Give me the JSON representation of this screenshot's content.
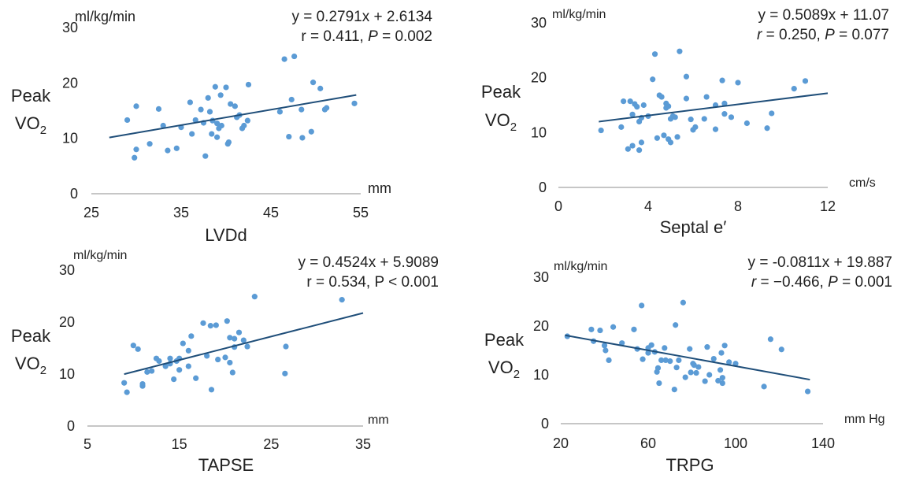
{
  "chart_data": [
    {
      "type": "scatter",
      "ylabel_main": "Peak",
      "ylabel_sub_main": "VO",
      "ylabel_sub_script": "2",
      "yunit": "ml/kg/min",
      "xunit": "mm",
      "xlabel": "LVDd",
      "equation": "y = 0.2791x + 2.6134",
      "stats": [
        {
          "text": "r = 0.411, ",
          "italic": false
        },
        {
          "text": "P",
          "italic": true
        },
        {
          "text": " = 0.002",
          "italic": false
        }
      ],
      "xlim": [
        25,
        55
      ],
      "ylim": [
        0,
        30
      ],
      "xticks": [
        "25",
        "35",
        "45",
        "55"
      ],
      "yticks": [
        "0",
        "10",
        "20",
        "30"
      ],
      "trendline": {
        "slope": 0.2791,
        "intercept": 2.6134,
        "x_range": [
          27,
          54.5
        ]
      },
      "points": [
        [
          29,
          13.3
        ],
        [
          29.8,
          6.5
        ],
        [
          30,
          8
        ],
        [
          30,
          15.8
        ],
        [
          31.5,
          9
        ],
        [
          32.5,
          15.3
        ],
        [
          33,
          12.3
        ],
        [
          33.5,
          7.8
        ],
        [
          34.5,
          8.2
        ],
        [
          35,
          12
        ],
        [
          36,
          16.5
        ],
        [
          36.2,
          10.8
        ],
        [
          36.6,
          13.3
        ],
        [
          37.2,
          15.2
        ],
        [
          37.5,
          12.8
        ],
        [
          37.7,
          6.8
        ],
        [
          38,
          17.3
        ],
        [
          38.2,
          14.8
        ],
        [
          38.4,
          10.8
        ],
        [
          38.5,
          13.2
        ],
        [
          38.8,
          19.3
        ],
        [
          39,
          12.7
        ],
        [
          39,
          10.2
        ],
        [
          39.2,
          11.8
        ],
        [
          39.4,
          17.8
        ],
        [
          39.5,
          12.3
        ],
        [
          40,
          19.2
        ],
        [
          40.2,
          9
        ],
        [
          40.3,
          9.3
        ],
        [
          40.5,
          16.2
        ],
        [
          41,
          15.8
        ],
        [
          41.2,
          13.8
        ],
        [
          41.5,
          14.2
        ],
        [
          41.8,
          11.8
        ],
        [
          42,
          12.3
        ],
        [
          42.4,
          13.2
        ],
        [
          42.5,
          19.7
        ],
        [
          46,
          14.8
        ],
        [
          46.5,
          24.3
        ],
        [
          47,
          10.3
        ],
        [
          47.3,
          17
        ],
        [
          47.6,
          24.8
        ],
        [
          48.4,
          15.2
        ],
        [
          48.5,
          10.1
        ],
        [
          49.5,
          11.2
        ],
        [
          49.7,
          20.1
        ],
        [
          50.5,
          19
        ],
        [
          51,
          15.2
        ],
        [
          51.2,
          15.5
        ],
        [
          54.3,
          16.3
        ]
      ]
    },
    {
      "type": "scatter",
      "ylabel_main": "Peak",
      "ylabel_sub_main": "VO",
      "ylabel_sub_script": "2",
      "yunit": "ml/kg/min",
      "xunit": "cm/s",
      "xlabel": "Septal e′",
      "equation": "y = 0.5089x + 11.07",
      "stats": [
        {
          "text": "r",
          "italic": true
        },
        {
          "text": " = 0.250, ",
          "italic": false
        },
        {
          "text": "P",
          "italic": true
        },
        {
          "text": " = 0.077",
          "italic": false
        }
      ],
      "xlim": [
        0,
        12
      ],
      "ylim": [
        0,
        30
      ],
      "xticks": [
        "0",
        "4",
        "8",
        "12"
      ],
      "yticks": [
        "0",
        "10",
        "20",
        "30"
      ],
      "trendline": {
        "slope": 0.5089,
        "intercept": 11.07,
        "x_range": [
          1.8,
          12
        ]
      },
      "points": [
        [
          1.9,
          10.4
        ],
        [
          2.8,
          11
        ],
        [
          2.9,
          15.7
        ],
        [
          3.1,
          7
        ],
        [
          3.2,
          15.7
        ],
        [
          3.3,
          13.3
        ],
        [
          3.3,
          7.6
        ],
        [
          3.4,
          15.2
        ],
        [
          3.5,
          14.7
        ],
        [
          3.6,
          12
        ],
        [
          3.6,
          6.8
        ],
        [
          3.7,
          12.7
        ],
        [
          3.7,
          8.2
        ],
        [
          3.8,
          15
        ],
        [
          4,
          13
        ],
        [
          4.2,
          19.7
        ],
        [
          4.3,
          24.3
        ],
        [
          4.4,
          9
        ],
        [
          4.5,
          16.8
        ],
        [
          4.6,
          16.5
        ],
        [
          4.7,
          9.5
        ],
        [
          4.8,
          15.3
        ],
        [
          4.8,
          14.5
        ],
        [
          4.9,
          14.8
        ],
        [
          4.9,
          8.8
        ],
        [
          5,
          12.5
        ],
        [
          5,
          8.2
        ],
        [
          5.1,
          13
        ],
        [
          5.2,
          12.8
        ],
        [
          5.4,
          24.8
        ],
        [
          5.3,
          9.2
        ],
        [
          5.7,
          20.2
        ],
        [
          5.7,
          16.2
        ],
        [
          5.9,
          12.4
        ],
        [
          6,
          10.5
        ],
        [
          6.1,
          11
        ],
        [
          6.5,
          12.5
        ],
        [
          6.6,
          16.5
        ],
        [
          7,
          15
        ],
        [
          7,
          10.6
        ],
        [
          7.3,
          19.5
        ],
        [
          7.4,
          13.4
        ],
        [
          7.4,
          15.3
        ],
        [
          7.7,
          12.8
        ],
        [
          8,
          19.1
        ],
        [
          8.4,
          11.7
        ],
        [
          9.3,
          10.8
        ],
        [
          9.5,
          13.5
        ],
        [
          10.5,
          18
        ],
        [
          11,
          19.4
        ]
      ]
    },
    {
      "type": "scatter",
      "ylabel_main": "Peak",
      "ylabel_sub_main": "VO",
      "ylabel_sub_script": "2",
      "yunit": "ml/kg/min",
      "xunit": "mm",
      "xlabel": "TAPSE",
      "equation": "y = 0.4524x + 5.9089",
      "stats": [
        {
          "text": "r = 0.534, P < 0.001",
          "italic": false
        }
      ],
      "xlim": [
        5,
        35
      ],
      "ylim": [
        0,
        30
      ],
      "xticks": [
        "5",
        "15",
        "25",
        "35"
      ],
      "yticks": [
        "0",
        "10",
        "20",
        "30"
      ],
      "trendline": {
        "slope": 0.4524,
        "intercept": 5.9089,
        "x_range": [
          9,
          35
        ]
      },
      "points": [
        [
          9,
          8.3
        ],
        [
          9.3,
          6.5
        ],
        [
          10,
          15.5
        ],
        [
          10.5,
          14.8
        ],
        [
          11,
          8.1
        ],
        [
          11,
          7.7
        ],
        [
          11.5,
          10.4
        ],
        [
          12,
          10.6
        ],
        [
          12.5,
          13
        ],
        [
          12.8,
          12.5
        ],
        [
          13.5,
          11.5
        ],
        [
          14,
          12
        ],
        [
          14,
          13
        ],
        [
          14.4,
          9
        ],
        [
          14.7,
          12.5
        ],
        [
          15,
          10.8
        ],
        [
          15,
          13
        ],
        [
          15.4,
          15.9
        ],
        [
          16,
          11.5
        ],
        [
          16,
          14.5
        ],
        [
          16.3,
          17.3
        ],
        [
          16.8,
          9.2
        ],
        [
          17.6,
          19.8
        ],
        [
          18,
          13.5
        ],
        [
          18.4,
          19.3
        ],
        [
          18.5,
          7
        ],
        [
          19,
          19.4
        ],
        [
          19.2,
          12.8
        ],
        [
          20,
          13.2
        ],
        [
          20.2,
          20.2
        ],
        [
          20.5,
          17
        ],
        [
          20.5,
          12.2
        ],
        [
          20.8,
          10.3
        ],
        [
          21,
          15.2
        ],
        [
          21,
          16.8
        ],
        [
          21.5,
          18
        ],
        [
          22,
          16.5
        ],
        [
          22.4,
          15.3
        ],
        [
          23.2,
          24.9
        ],
        [
          26.5,
          10.1
        ],
        [
          26.6,
          15.3
        ],
        [
          32.7,
          24.3
        ]
      ]
    },
    {
      "type": "scatter",
      "ylabel_main": "Peak",
      "ylabel_sub_main": "VO",
      "ylabel_sub_script": "2",
      "yunit": "ml/kg/min",
      "xunit": "mm Hg",
      "xlabel": "TRPG",
      "equation": "y = -0.0811x + 19.887",
      "stats": [
        {
          "text": "r",
          "italic": true
        },
        {
          "text": " = −0.466, ",
          "italic": false
        },
        {
          "text": "P",
          "italic": true
        },
        {
          "text": " = 0.001",
          "italic": false
        }
      ],
      "xlim": [
        20,
        140
      ],
      "ylim": [
        0,
        30
      ],
      "xticks": [
        "20",
        "60",
        "100",
        "140"
      ],
      "yticks": [
        "0",
        "10",
        "20",
        "30"
      ],
      "trendline": {
        "slope": -0.0811,
        "intercept": 19.887,
        "x_range": [
          22,
          134
        ]
      },
      "points": [
        [
          23,
          17.9
        ],
        [
          34,
          19.3
        ],
        [
          35,
          16.9
        ],
        [
          38,
          19.1
        ],
        [
          40,
          16
        ],
        [
          40.5,
          15
        ],
        [
          42,
          13
        ],
        [
          44,
          19.8
        ],
        [
          48,
          16.5
        ],
        [
          53.5,
          19.3
        ],
        [
          55,
          15.3
        ],
        [
          57,
          24.2
        ],
        [
          57.5,
          13.2
        ],
        [
          60,
          15.5
        ],
        [
          60,
          14.5
        ],
        [
          61.5,
          16.1
        ],
        [
          63,
          14.7
        ],
        [
          64,
          10.6
        ],
        [
          64.5,
          11.4
        ],
        [
          65,
          8.3
        ],
        [
          66,
          13
        ],
        [
          67.5,
          15.5
        ],
        [
          68,
          13
        ],
        [
          70,
          12.8
        ],
        [
          72,
          7
        ],
        [
          72.5,
          20.2
        ],
        [
          73,
          11.5
        ],
        [
          74,
          13
        ],
        [
          76,
          24.8
        ],
        [
          77,
          9.5
        ],
        [
          79,
          15.3
        ],
        [
          79.5,
          10.5
        ],
        [
          80.5,
          12.3
        ],
        [
          81,
          12
        ],
        [
          82,
          10.4
        ],
        [
          83,
          11.6
        ],
        [
          86,
          8.7
        ],
        [
          87,
          15.7
        ],
        [
          88,
          10
        ],
        [
          90,
          13.3
        ],
        [
          92,
          8.8
        ],
        [
          93,
          11
        ],
        [
          93.5,
          14.5
        ],
        [
          94,
          9.4
        ],
        [
          94,
          8.3
        ],
        [
          95,
          16
        ],
        [
          97,
          12.6
        ],
        [
          100,
          12.3
        ],
        [
          113,
          7.6
        ],
        [
          116,
          17.3
        ],
        [
          121,
          15.2
        ],
        [
          133,
          6.6
        ]
      ]
    }
  ]
}
